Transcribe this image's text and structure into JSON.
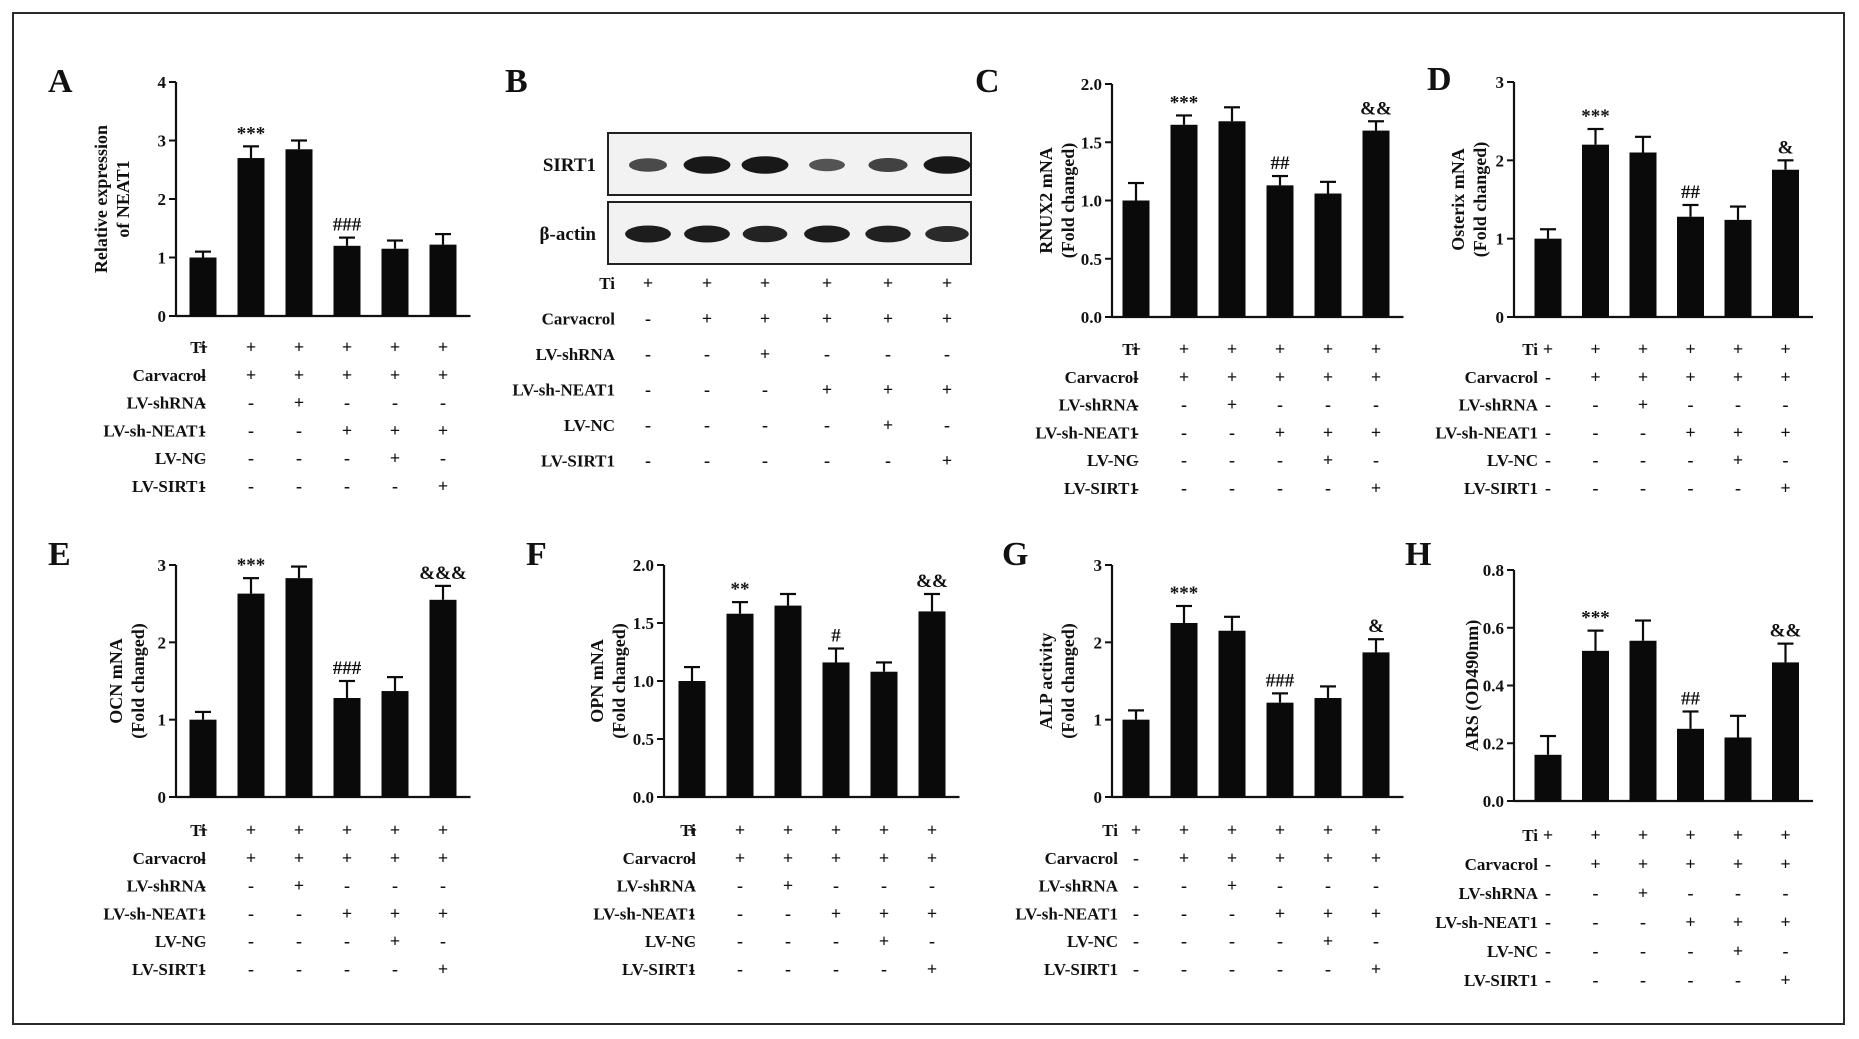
{
  "chart_data": [
    {
      "type": "bar",
      "panel_label": "A",
      "ylabel": [
        "Relative expression",
        "of NEAT1"
      ],
      "ylim": [
        0,
        4
      ],
      "yticks": [
        "0",
        "1",
        "2",
        "3",
        "4"
      ],
      "values": [
        1.0,
        2.7,
        2.85,
        1.2,
        1.15,
        1.22
      ],
      "errors": [
        0.1,
        0.2,
        0.15,
        0.14,
        0.14,
        0.18
      ],
      "annotations": [
        "",
        "***",
        "",
        "###",
        "",
        ""
      ],
      "condition_labels": [
        "Ti",
        "Carvacrol",
        "LV-shRNA",
        "LV-sh-NEAT1",
        "LV-NC",
        "LV-SIRT1"
      ],
      "condition_signs": [
        [
          "+",
          "+",
          "+",
          "+",
          "+",
          "+"
        ],
        [
          "-",
          "+",
          "+",
          "+",
          "+",
          "+"
        ],
        [
          "-",
          "-",
          "+",
          "-",
          "-",
          "-"
        ],
        [
          "-",
          "-",
          "-",
          "+",
          "+",
          "+"
        ],
        [
          "-",
          "-",
          "-",
          "-",
          "+",
          "-"
        ],
        [
          "-",
          "-",
          "-",
          "-",
          "-",
          "+"
        ]
      ]
    },
    {
      "type": "blot",
      "panel_label": "B",
      "band_labels": [
        "SIRT1",
        "β-actin"
      ],
      "band_intensity": [
        [
          0.55,
          0.95,
          0.95,
          0.45,
          0.6,
          0.95
        ],
        [
          0.9,
          0.9,
          0.85,
          0.9,
          0.88,
          0.8
        ]
      ],
      "condition_labels": [
        "Ti",
        "Carvacrol",
        "LV-shRNA",
        "LV-sh-NEAT1",
        "LV-NC",
        "LV-SIRT1"
      ],
      "condition_signs": [
        [
          "+",
          "+",
          "+",
          "+",
          "+",
          "+"
        ],
        [
          "-",
          "+",
          "+",
          "+",
          "+",
          "+"
        ],
        [
          "-",
          "-",
          "+",
          "-",
          "-",
          "-"
        ],
        [
          "-",
          "-",
          "-",
          "+",
          "+",
          "+"
        ],
        [
          "-",
          "-",
          "-",
          "-",
          "+",
          "-"
        ],
        [
          "-",
          "-",
          "-",
          "-",
          "-",
          "+"
        ]
      ]
    },
    {
      "type": "bar",
      "panel_label": "C",
      "ylabel": [
        "RNUX2 mNA",
        "(Fold changed)"
      ],
      "ylim": [
        0,
        2.0
      ],
      "yticks": [
        "0.0",
        "0.5",
        "1.0",
        "1.5",
        "2.0"
      ],
      "values": [
        1.0,
        1.65,
        1.68,
        1.13,
        1.06,
        1.6
      ],
      "errors": [
        0.15,
        0.08,
        0.12,
        0.08,
        0.1,
        0.08
      ],
      "annotations": [
        "",
        "***",
        "",
        "##",
        "",
        "&&"
      ],
      "condition_labels": [
        "Ti",
        "Carvacrol",
        "LV-shRNA",
        "LV-sh-NEAT1",
        "LV-NC",
        "LV-SIRT1"
      ],
      "condition_signs": [
        [
          "+",
          "+",
          "+",
          "+",
          "+",
          "+"
        ],
        [
          "-",
          "+",
          "+",
          "+",
          "+",
          "+"
        ],
        [
          "-",
          "-",
          "+",
          "-",
          "-",
          "-"
        ],
        [
          "-",
          "-",
          "-",
          "+",
          "+",
          "+"
        ],
        [
          "-",
          "-",
          "-",
          "-",
          "+",
          "-"
        ],
        [
          "-",
          "-",
          "-",
          "-",
          "-",
          "+"
        ]
      ]
    },
    {
      "type": "bar",
      "panel_label": "D",
      "ylabel": [
        "Osterix mNA",
        "(Fold changed)"
      ],
      "ylim": [
        0,
        3
      ],
      "yticks": [
        "0",
        "1",
        "2",
        "3"
      ],
      "values": [
        1.0,
        2.2,
        2.1,
        1.28,
        1.24,
        1.88
      ],
      "errors": [
        0.12,
        0.2,
        0.2,
        0.15,
        0.17,
        0.12
      ],
      "annotations": [
        "",
        "***",
        "",
        "##",
        "",
        "&"
      ],
      "condition_labels": [
        "Ti",
        "Carvacrol",
        "LV-shRNA",
        "LV-sh-NEAT1",
        "LV-NC",
        "LV-SIRT1"
      ],
      "condition_signs": [
        [
          "+",
          "+",
          "+",
          "+",
          "+",
          "+"
        ],
        [
          "-",
          "+",
          "+",
          "+",
          "+",
          "+"
        ],
        [
          "-",
          "-",
          "+",
          "-",
          "-",
          "-"
        ],
        [
          "-",
          "-",
          "-",
          "+",
          "+",
          "+"
        ],
        [
          "-",
          "-",
          "-",
          "-",
          "+",
          "-"
        ],
        [
          "-",
          "-",
          "-",
          "-",
          "-",
          "+"
        ]
      ]
    },
    {
      "type": "bar",
      "panel_label": "E",
      "ylabel": [
        "OCN mNA",
        "(Fold changed)"
      ],
      "ylim": [
        0,
        3
      ],
      "yticks": [
        "0",
        "1",
        "2",
        "3"
      ],
      "values": [
        1.0,
        2.63,
        2.83,
        1.28,
        1.37,
        2.55
      ],
      "errors": [
        0.1,
        0.2,
        0.15,
        0.22,
        0.18,
        0.18
      ],
      "annotations": [
        "",
        "***",
        "",
        "###",
        "",
        "&&&"
      ],
      "condition_labels": [
        "Ti",
        "Carvacrol",
        "LV-shRNA",
        "LV-sh-NEAT1",
        "LV-NC",
        "LV-SIRT1"
      ],
      "condition_signs": [
        [
          "+",
          "+",
          "+",
          "+",
          "+",
          "+"
        ],
        [
          "-",
          "+",
          "+",
          "+",
          "+",
          "+"
        ],
        [
          "-",
          "-",
          "+",
          "-",
          "-",
          "-"
        ],
        [
          "-",
          "-",
          "-",
          "+",
          "+",
          "+"
        ],
        [
          "-",
          "-",
          "-",
          "-",
          "+",
          "-"
        ],
        [
          "-",
          "-",
          "-",
          "-",
          "-",
          "+"
        ]
      ]
    },
    {
      "type": "bar",
      "panel_label": "F",
      "ylabel": [
        "OPN mNA",
        "(Fold changed)"
      ],
      "ylim": [
        0,
        2.0
      ],
      "yticks": [
        "0.0",
        "0.5",
        "1.0",
        "1.5",
        "2.0"
      ],
      "values": [
        1.0,
        1.58,
        1.65,
        1.16,
        1.08,
        1.6
      ],
      "errors": [
        0.12,
        0.1,
        0.1,
        0.12,
        0.08,
        0.15
      ],
      "annotations": [
        "",
        "**",
        "",
        "#",
        "",
        "&&"
      ],
      "condition_labels": [
        "Ti",
        "Carvacrol",
        "LV-shRNA",
        "LV-sh-NEAT1",
        "LV-NC",
        "LV-SIRT1"
      ],
      "condition_signs": [
        [
          "+",
          "+",
          "+",
          "+",
          "+",
          "+"
        ],
        [
          "-",
          "+",
          "+",
          "+",
          "+",
          "+"
        ],
        [
          "-",
          "-",
          "+",
          "-",
          "-",
          "-"
        ],
        [
          "-",
          "-",
          "-",
          "+",
          "+",
          "+"
        ],
        [
          "-",
          "-",
          "-",
          "-",
          "+",
          "-"
        ],
        [
          "-",
          "-",
          "-",
          "-",
          "-",
          "+"
        ]
      ]
    },
    {
      "type": "bar",
      "panel_label": "G",
      "ylabel": [
        "ALP activity",
        "(Fold changed)"
      ],
      "ylim": [
        0,
        3
      ],
      "yticks": [
        "0",
        "1",
        "2",
        "3"
      ],
      "values": [
        1.0,
        2.25,
        2.15,
        1.22,
        1.28,
        1.87
      ],
      "errors": [
        0.12,
        0.22,
        0.18,
        0.12,
        0.15,
        0.17
      ],
      "annotations": [
        "",
        "***",
        "",
        "###",
        "",
        "&"
      ],
      "condition_labels": [
        "Ti",
        "Carvacrol",
        "LV-shRNA",
        "LV-sh-NEAT1",
        "LV-NC",
        "LV-SIRT1"
      ],
      "condition_signs": [
        [
          "+",
          "+",
          "+",
          "+",
          "+",
          "+"
        ],
        [
          "-",
          "+",
          "+",
          "+",
          "+",
          "+"
        ],
        [
          "-",
          "-",
          "+",
          "-",
          "-",
          "-"
        ],
        [
          "-",
          "-",
          "-",
          "+",
          "+",
          "+"
        ],
        [
          "-",
          "-",
          "-",
          "-",
          "+",
          "-"
        ],
        [
          "-",
          "-",
          "-",
          "-",
          "-",
          "+"
        ]
      ]
    },
    {
      "type": "bar",
      "panel_label": "H",
      "ylabel": [
        "ARS (OD490nm)"
      ],
      "ylim": [
        0,
        0.8
      ],
      "yticks": [
        "0.0",
        "0.2",
        "0.4",
        "0.6",
        "0.8"
      ],
      "values": [
        0.16,
        0.52,
        0.555,
        0.25,
        0.22,
        0.48
      ],
      "errors": [
        0.065,
        0.07,
        0.07,
        0.06,
        0.075,
        0.065
      ],
      "annotations": [
        "",
        "***",
        "",
        "##",
        "",
        "&&"
      ],
      "condition_labels": [
        "Ti",
        "Carvacrol",
        "LV-shRNA",
        "LV-sh-NEAT1",
        "LV-NC",
        "LV-SIRT1"
      ],
      "condition_signs": [
        [
          "+",
          "+",
          "+",
          "+",
          "+",
          "+"
        ],
        [
          "-",
          "+",
          "+",
          "+",
          "+",
          "+"
        ],
        [
          "-",
          "-",
          "+",
          "-",
          "-",
          "-"
        ],
        [
          "-",
          "-",
          "-",
          "+",
          "+",
          "+"
        ],
        [
          "-",
          "-",
          "-",
          "-",
          "+",
          "-"
        ],
        [
          "-",
          "-",
          "-",
          "-",
          "-",
          "+"
        ]
      ]
    }
  ]
}
